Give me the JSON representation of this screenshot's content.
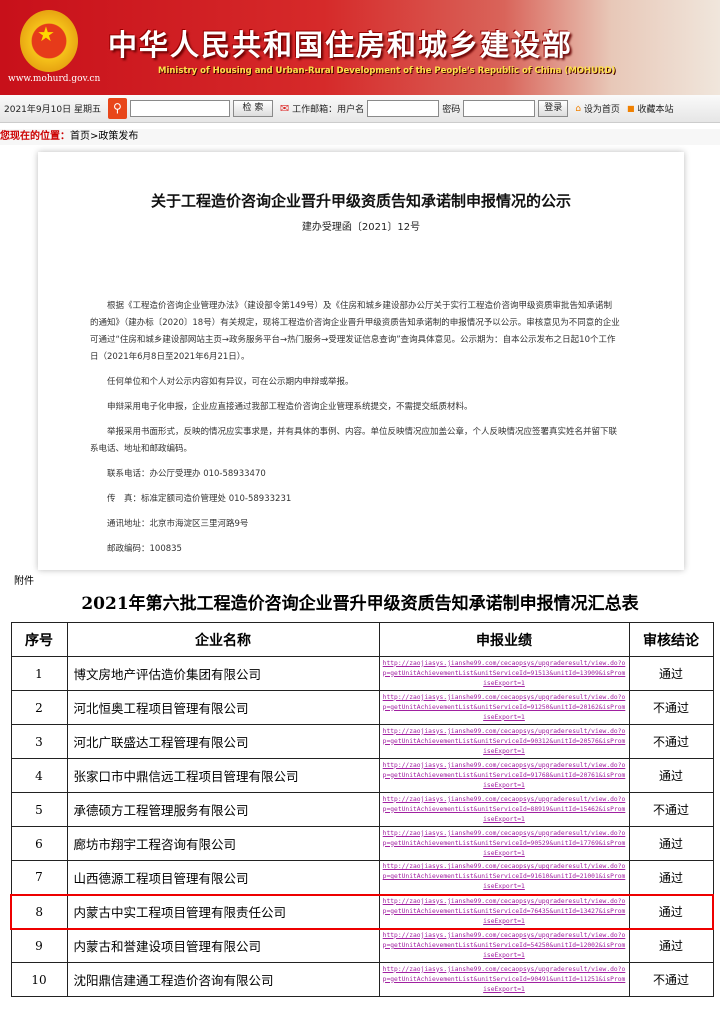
{
  "header": {
    "title_cn": "中华人民共和国住房和城乡建设部",
    "title_en": "Ministry of Housing and Urban-Rural Development of the People's Republic of China (MOHURD)",
    "url": "www.mohurd.gov.cn"
  },
  "toolbar": {
    "date": "2021年9月10日 星期五",
    "search_label": "检  索",
    "mail_label": "工作邮箱：用户名",
    "password_label": "密码",
    "login_label": "登录",
    "homepage_label": "设为首页",
    "bookmark_label": "收藏本站"
  },
  "breadcrumb": {
    "label": "您现在的位置：",
    "path": "首页>政策发布"
  },
  "doc": {
    "title": "关于工程造价咨询企业晋升甲级资质告知承诺制申报情况的公示",
    "number": "建办受理函〔2021〕12号",
    "paragraphs": [
      "根据《工程造价咨询企业管理办法》（建设部令第149号）及《住房和城乡建设部办公厅关于实行工程造价咨询甲级资质审批告知承诺制的通知》（建办标〔2020〕18号）有关规定，现将工程造价咨询企业晋升甲级资质告知承诺制的申报情况予以公示。审核意见为不同意的企业可通过“住房和城乡建设部网站主页→政务服务平台→热门服务→受理发证信息查询”查询具体意见。公示期为：自本公示发布之日起10个工作日（2021年6月8日至2021年6月21日）。",
      "任何单位和个人对公示内容如有异议，可在公示期内申辩或举报。",
      "申辩采用电子化申报，企业应直接通过我部工程造价咨询企业管理系统提交，不需提交纸质材料。",
      "举报采用书面形式，反映的情况应实事求是，并有具体的事例、内容。单位反映情况应加盖公章，个人反映情况应签署真实姓名并留下联系电话、地址和邮政编码。"
    ],
    "contacts": [
      "联系电话：办公厅受理办 010-58933470",
      "传　真：标准定额司造价管理处 010-58933231",
      "通讯地址：北京市海淀区三里河路9号",
      "邮政编码：100835"
    ]
  },
  "attachment": "附件",
  "summary": {
    "title": "2021年第六批工程造价咨询企业晋升甲级资质告知承诺制申报情况汇总表",
    "headers": [
      "序号",
      "企业名称",
      "申报业绩",
      "审核结论"
    ],
    "rows": [
      {
        "no": "1",
        "name": "博文房地产评估造价集团有限公司",
        "url": "http://zaojiasys.jianshe99.com/cecaopsys/upgraderesult/view.do?op=getUnitAchievementList&unitServiceId=91513&unitId=13909&isPromiseExport=1",
        "result": "通过"
      },
      {
        "no": "2",
        "name": "河北恒奥工程项目管理有限公司",
        "url": "http://zaojiasys.jianshe99.com/cecaopsys/upgraderesult/view.do?op=getUnitAchievementList&unitServiceId=91250&unitId=20162&isPromiseExport=1",
        "result": "不通过"
      },
      {
        "no": "3",
        "name": "河北广联盛达工程管理有限公司",
        "url": "http://zaojiasys.jianshe99.com/cecaopsys/upgraderesult/view.do?op=getUnitAchievementList&unitServiceId=90312&unitId=20576&isPromiseExport=1",
        "result": "不通过"
      },
      {
        "no": "4",
        "name": "张家口市中鼎信远工程项目管理有限公司",
        "url": "http://zaojiasys.jianshe99.com/cecaopsys/upgraderesult/view.do?op=getUnitAchievementList&unitServiceId=91768&unitId=20761&isPromiseExport=1",
        "result": "通过"
      },
      {
        "no": "5",
        "name": "承德硕方工程管理服务有限公司",
        "url": "http://zaojiasys.jianshe99.com/cecaopsys/upgraderesult/view.do?op=getUnitAchievementList&unitServiceId=88919&unitId=15462&isPromiseExport=1",
        "result": "不通过"
      },
      {
        "no": "6",
        "name": "廊坊市翔宇工程咨询有限公司",
        "url": "http://zaojiasys.jianshe99.com/cecaopsys/upgraderesult/view.do?op=getUnitAchievementList&unitServiceId=90529&unitId=17769&isPromiseExport=1",
        "result": "通过"
      },
      {
        "no": "7",
        "name": "山西德源工程项目管理有限公司",
        "url": "http://zaojiasys.jianshe99.com/cecaopsys/upgraderesult/view.do?op=getUnitAchievementList&unitServiceId=91610&unitId=21001&isPromiseExport=1",
        "result": "通过"
      },
      {
        "no": "8",
        "name": "内蒙古中实工程项目管理有限责任公司",
        "url": "http://zaojiasys.jianshe99.com/cecaopsys/upgraderesult/view.do?op=getUnitAchievementList&unitServiceId=76435&unitId=13427&isPromiseExport=1",
        "result": "通过"
      },
      {
        "no": "9",
        "name": "内蒙古和誉建设项目管理有限公司",
        "url": "http://zaojiasys.jianshe99.com/cecaopsys/upgraderesult/view.do?op=getUnitAchievementList&unitServiceId=54250&unitId=12002&isPromiseExport=1",
        "result": "通过"
      },
      {
        "no": "10",
        "name": "沈阳鼎信建通工程造价咨询有限公司",
        "url": "http://zaojiasys.jianshe99.com/cecaopsys/upgraderesult/view.do?op=getUnitAchievementList&unitServiceId=90491&unitId=11251&isPromiseExport=1",
        "result": "不通过"
      }
    ]
  },
  "colors": {
    "header_red": "#c8101a",
    "highlight": "#e00000",
    "link": "#a020a0"
  }
}
